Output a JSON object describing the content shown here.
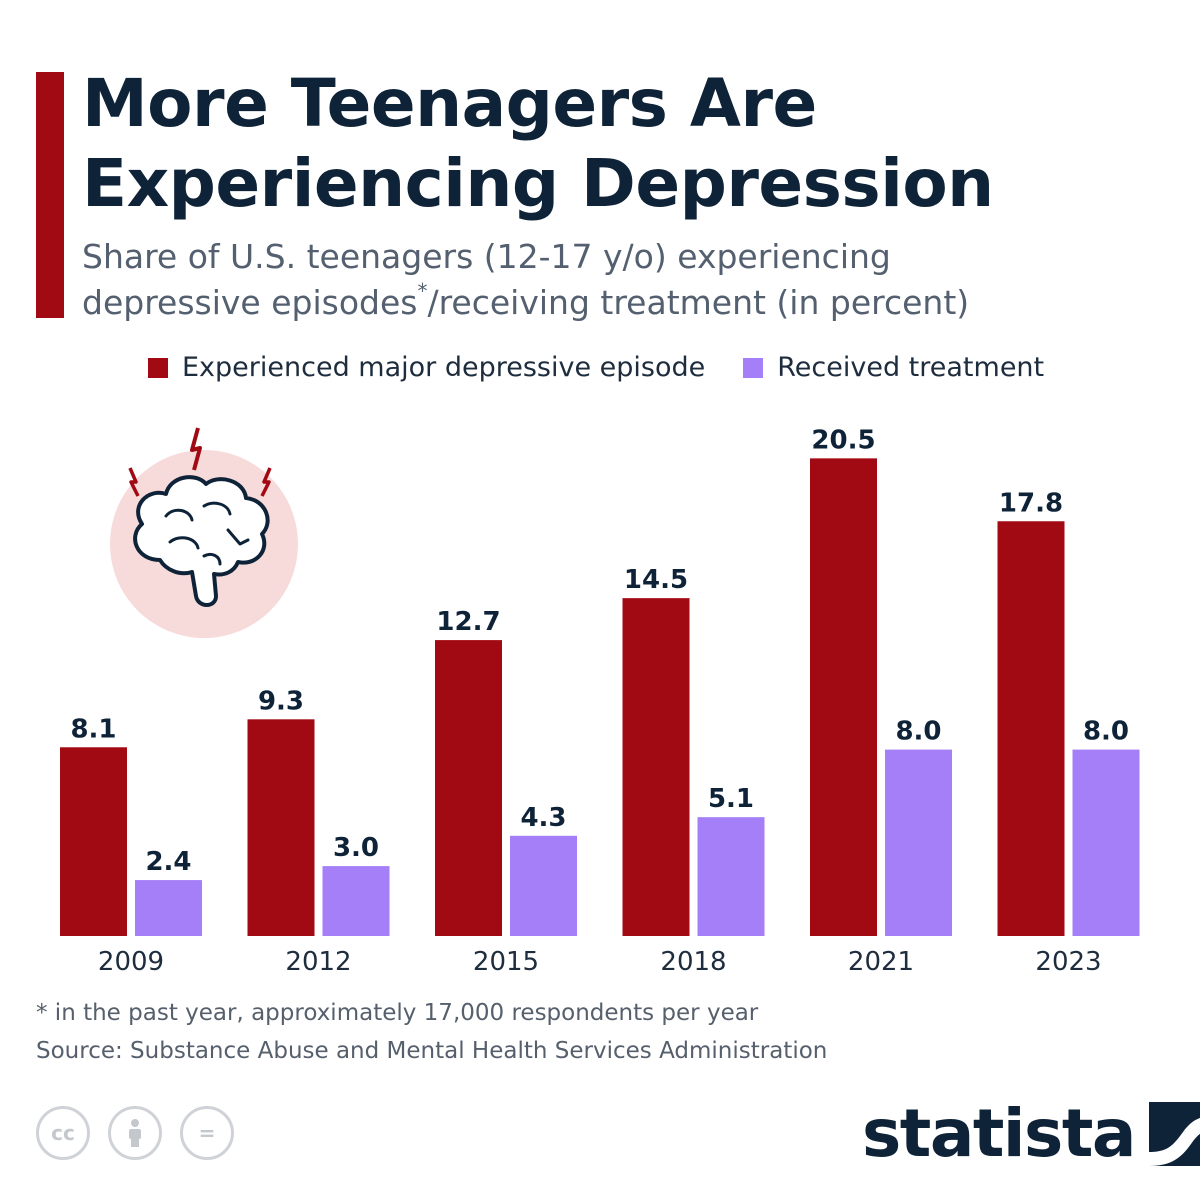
{
  "header": {
    "title_line1": "More Teenagers Are",
    "title_line2": "Experiencing Depression",
    "subtitle_line1": "Share of U.S. teenagers (12-17 y/o) experiencing",
    "subtitle_line2a": "depressive episodes",
    "subtitle_asterisk": "*",
    "subtitle_line2b": "/receiving treatment (in percent)"
  },
  "colors": {
    "accent": "#a10a13",
    "episode": "#a10a13",
    "treatment": "#a57ff7",
    "title": "#0f2338",
    "brain_circle": "#f7dbdb"
  },
  "chart_data": {
    "type": "bar",
    "categories": [
      "2009",
      "2012",
      "2015",
      "2018",
      "2021",
      "2023"
    ],
    "series": [
      {
        "name": "Experienced major depressive episode",
        "values": [
          8.1,
          9.3,
          12.7,
          14.5,
          20.5,
          17.8
        ]
      },
      {
        "name": "Received treatment",
        "values": [
          2.4,
          3.0,
          4.3,
          5.1,
          8.0,
          8.0
        ]
      }
    ],
    "value_labels": [
      [
        "8.1",
        "9.3",
        "12.7",
        "14.5",
        "20.5",
        "17.8"
      ],
      [
        "2.4",
        "3.0",
        "4.3",
        "5.1",
        "8.0",
        "8.0"
      ]
    ],
    "title": "More Teenagers Are Experiencing Depression",
    "xlabel": "",
    "ylabel": "",
    "ylim": [
      0,
      23
    ],
    "grid": false,
    "legend_position": "top"
  },
  "footer": {
    "footnote": "* in the past year, approximately 17,000 respondents per year",
    "source": "Source: Substance Abuse and Mental Health Services Administration",
    "logo_text": "statista",
    "cc_icons": [
      "cc-icon",
      "attribution-icon",
      "no-derivatives-icon"
    ],
    "cc_label": "cc",
    "nd_label": "="
  }
}
